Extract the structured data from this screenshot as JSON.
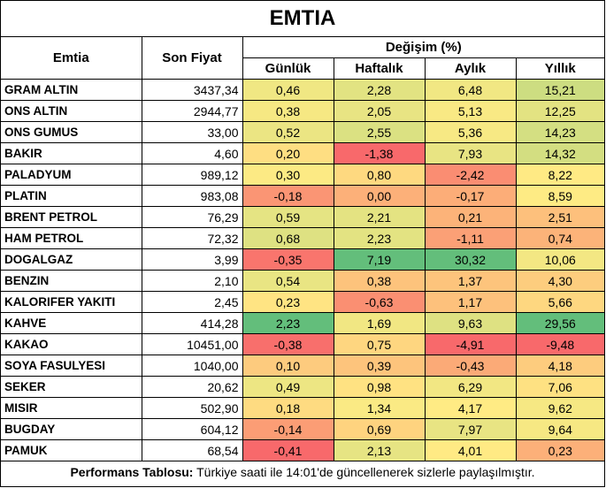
{
  "title": "EMTIA",
  "headers": {
    "commodity": "Emtia",
    "last_price": "Son Fiyat",
    "change_group": "Değişim (%)",
    "daily": "Günlük",
    "weekly": "Haftalık",
    "monthly": "Aylık",
    "yearly": "Yıllık"
  },
  "rows": [
    {
      "name": "GRAM ALTIN",
      "price": "3437,34",
      "daily": "0,46",
      "weekly": "2,28",
      "monthly": "6,48",
      "yearly": "15,21"
    },
    {
      "name": "ONS ALTIN",
      "price": "2944,77",
      "daily": "0,38",
      "weekly": "2,05",
      "monthly": "5,13",
      "yearly": "12,25"
    },
    {
      "name": "ONS GUMUS",
      "price": "33,00",
      "daily": "0,52",
      "weekly": "2,55",
      "monthly": "5,36",
      "yearly": "14,23"
    },
    {
      "name": "BAKIR",
      "price": "4,60",
      "daily": "0,20",
      "weekly": "-1,38",
      "monthly": "7,93",
      "yearly": "14,32"
    },
    {
      "name": "PALADYUM",
      "price": "989,12",
      "daily": "0,30",
      "weekly": "0,80",
      "monthly": "-2,42",
      "yearly": "8,22"
    },
    {
      "name": "PLATIN",
      "price": "983,08",
      "daily": "-0,18",
      "weekly": "0,00",
      "monthly": "-0,17",
      "yearly": "8,59"
    },
    {
      "name": "BRENT PETROL",
      "price": "76,29",
      "daily": "0,59",
      "weekly": "2,21",
      "monthly": "0,21",
      "yearly": "2,51"
    },
    {
      "name": "HAM PETROL",
      "price": "72,32",
      "daily": "0,68",
      "weekly": "2,23",
      "monthly": "-1,11",
      "yearly": "0,74"
    },
    {
      "name": "DOGALGAZ",
      "price": "3,99",
      "daily": "-0,35",
      "weekly": "7,19",
      "monthly": "30,32",
      "yearly": "10,06"
    },
    {
      "name": "BENZIN",
      "price": "2,10",
      "daily": "0,54",
      "weekly": "0,38",
      "monthly": "1,37",
      "yearly": "4,30"
    },
    {
      "name": "KALORIFER YAKITI",
      "price": "2,45",
      "daily": "0,23",
      "weekly": "-0,63",
      "monthly": "1,17",
      "yearly": "5,66"
    },
    {
      "name": "KAHVE",
      "price": "414,28",
      "daily": "2,23",
      "weekly": "1,69",
      "monthly": "9,63",
      "yearly": "29,56"
    },
    {
      "name": "KAKAO",
      "price": "10451,00",
      "daily": "-0,38",
      "weekly": "0,75",
      "monthly": "-4,91",
      "yearly": "-9,48"
    },
    {
      "name": "SOYA FASULYESI",
      "price": "1040,00",
      "daily": "0,10",
      "weekly": "0,39",
      "monthly": "-0,43",
      "yearly": "4,18"
    },
    {
      "name": "SEKER",
      "price": "20,62",
      "daily": "0,49",
      "weekly": "0,98",
      "monthly": "6,29",
      "yearly": "7,06"
    },
    {
      "name": "MISIR",
      "price": "502,90",
      "daily": "0,18",
      "weekly": "1,34",
      "monthly": "4,17",
      "yearly": "9,62"
    },
    {
      "name": "BUGDAY",
      "price": "604,12",
      "daily": "-0,14",
      "weekly": "0,69",
      "monthly": "7,97",
      "yearly": "9,64"
    },
    {
      "name": "PAMUK",
      "price": "68,54",
      "daily": "-0,41",
      "weekly": "2,13",
      "monthly": "4,01",
      "yearly": "0,23"
    }
  ],
  "footer": {
    "bold": "Performans Tablosu:",
    "text": " Türkiye saati ile 14:01'de güncellenerek sizlerle paylaşılmıştır."
  },
  "heatmap_colors": {
    "low": "#f8696b",
    "mid": "#ffeb84",
    "high": "#63be7b"
  }
}
